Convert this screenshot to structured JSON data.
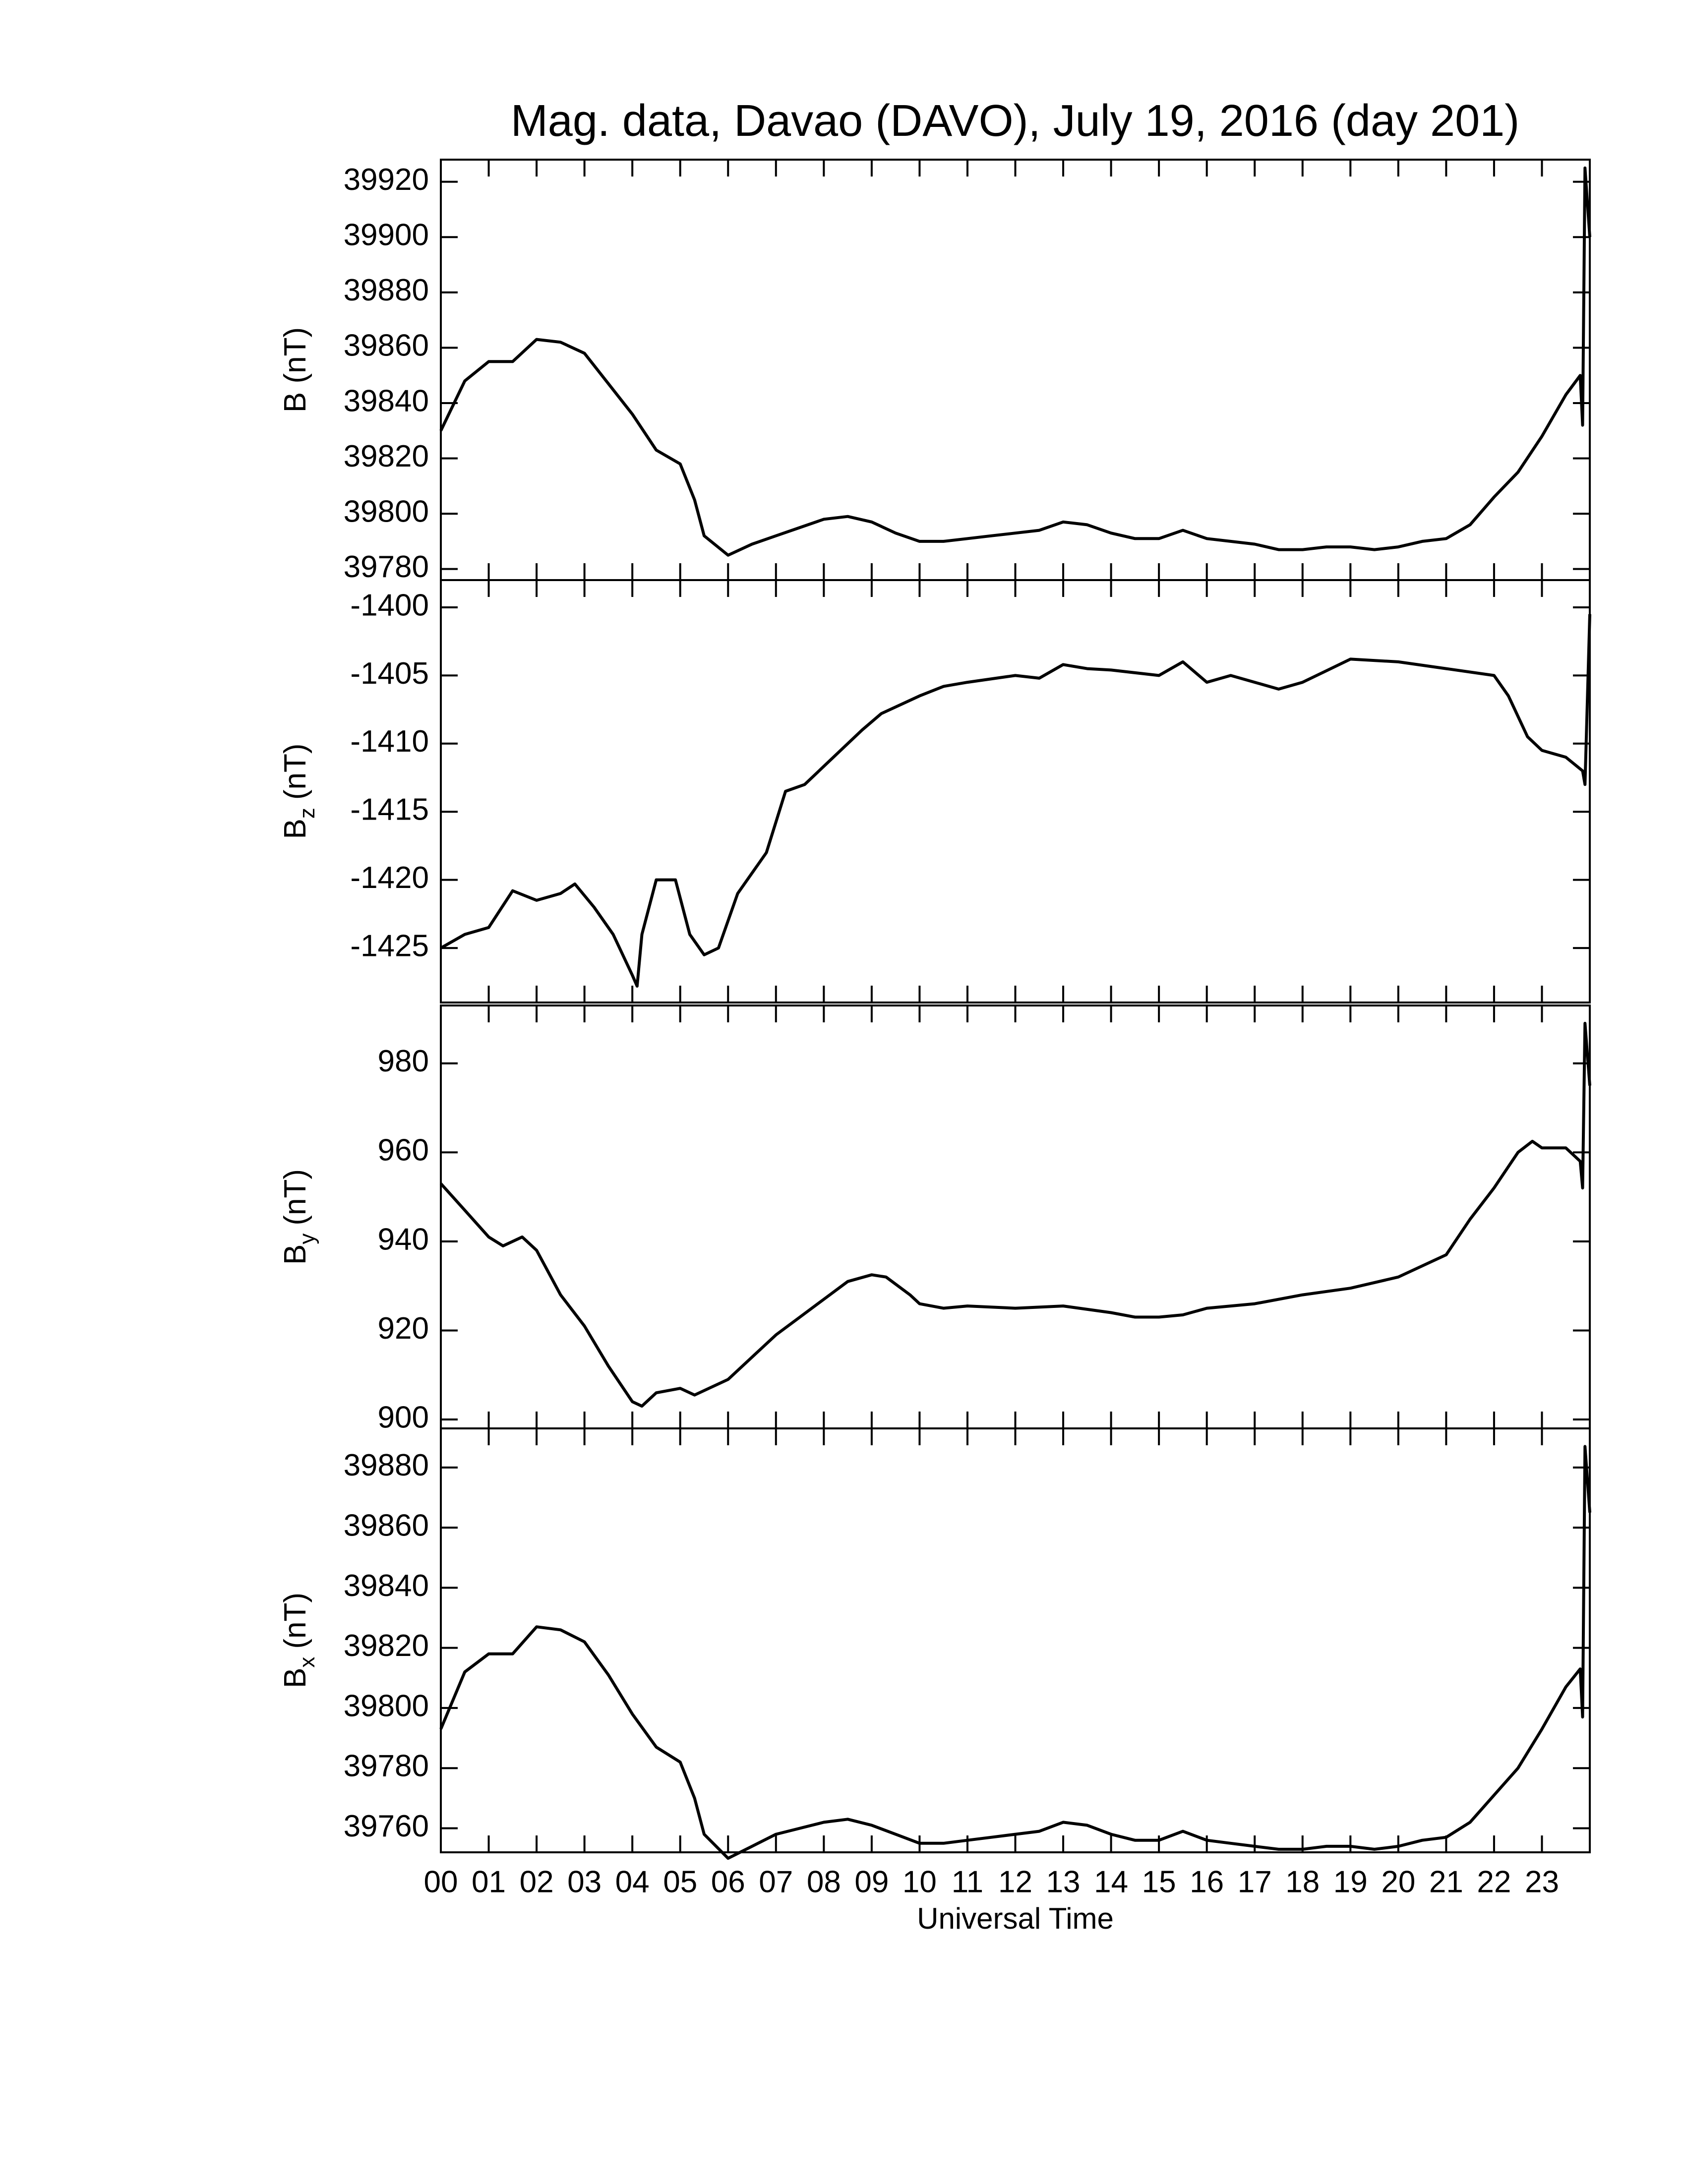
{
  "chart_data": [
    {
      "type": "line",
      "title": "Mag. data, Davao (DAVO), July 19, 2016 (day 201)",
      "ylabel": "B (nT)",
      "color": "#000000",
      "xlim": [
        0,
        24
      ],
      "ylim": [
        39776,
        39928
      ],
      "yticks": [
        39780,
        39800,
        39820,
        39840,
        39860,
        39880,
        39900,
        39920
      ],
      "x": [
        0,
        0.5,
        1,
        1.5,
        2,
        2.5,
        3,
        3.5,
        4,
        4.5,
        5,
        5.3,
        5.5,
        6,
        6.5,
        7,
        7.5,
        8,
        8.5,
        9,
        9.5,
        10,
        10.5,
        11,
        11.5,
        12,
        12.5,
        13,
        13.5,
        14,
        14.5,
        15,
        15.5,
        16,
        16.5,
        17,
        17.5,
        18,
        18.5,
        19,
        19.5,
        20,
        20.5,
        21,
        21.5,
        22,
        22.5,
        23,
        23.5,
        23.8,
        23.85,
        23.9,
        24
      ],
      "values": [
        39830,
        39848,
        39855,
        39855,
        39863,
        39862,
        39858,
        39847,
        39836,
        39823,
        39818,
        39805,
        39792,
        39785,
        39789,
        39792,
        39795,
        39798,
        39799,
        39797,
        39793,
        39790,
        39790,
        39791,
        39792,
        39793,
        39794,
        39797,
        39796,
        39793,
        39791,
        39791,
        39794,
        39791,
        39790,
        39789,
        39787,
        39787,
        39788,
        39788,
        39787,
        39788,
        39790,
        39791,
        39796,
        39806,
        39815,
        39828,
        39843,
        39850,
        39832,
        39925,
        39900
      ]
    },
    {
      "type": "line",
      "ylabel": "B",
      "ylabel_sub": "z",
      "ylabel_unit": "(nT)",
      "color": "#000000",
      "xlim": [
        0,
        24
      ],
      "ylim": [
        -1429,
        -1398
      ],
      "yticks": [
        -1425,
        -1420,
        -1415,
        -1410,
        -1405,
        -1400
      ],
      "x": [
        0,
        0.5,
        1,
        1.5,
        2,
        2.5,
        2.8,
        3.2,
        3.6,
        4,
        4.1,
        4.2,
        4.5,
        4.9,
        5.2,
        5.5,
        5.8,
        6.2,
        6.8,
        7.2,
        7.6,
        8.2,
        8.8,
        9.2,
        10,
        10.5,
        11,
        12,
        12.5,
        13,
        13.5,
        14,
        15,
        15.5,
        16,
        16.5,
        17,
        17.5,
        18,
        19,
        20,
        21,
        22,
        22.3,
        22.7,
        23,
        23.5,
        23.85,
        23.9,
        24
      ],
      "values": [
        -1425,
        -1424,
        -1423.5,
        -1420.8,
        -1421.5,
        -1421,
        -1420.3,
        -1422,
        -1424,
        -1427,
        -1427.8,
        -1424,
        -1420,
        -1420,
        -1424,
        -1425.5,
        -1425,
        -1421,
        -1418,
        -1413.5,
        -1413,
        -1411,
        -1409,
        -1407.8,
        -1406.5,
        -1405.8,
        -1405.5,
        -1405,
        -1405.2,
        -1404.2,
        -1404.5,
        -1404.6,
        -1405,
        -1404,
        -1405.5,
        -1405,
        -1405.5,
        -1406,
        -1405.5,
        -1403.8,
        -1404,
        -1404.5,
        -1405,
        -1406.5,
        -1409.5,
        -1410.5,
        -1411,
        -1412,
        -1413,
        -1400.5
      ]
    },
    {
      "type": "line",
      "ylabel": "B",
      "ylabel_sub": "y",
      "ylabel_unit": "(nT)",
      "color": "#000000",
      "xlim": [
        0,
        24
      ],
      "ylim": [
        898,
        993
      ],
      "yticks": [
        900,
        920,
        940,
        960,
        980
      ],
      "x": [
        0,
        0.5,
        1,
        1.3,
        1.7,
        2,
        2.5,
        3,
        3.5,
        4,
        4.2,
        4.5,
        5,
        5.3,
        5.6,
        6,
        6.5,
        7,
        7.5,
        8,
        8.5,
        9,
        9.3,
        9.8,
        10,
        10.5,
        11,
        12,
        13,
        14,
        14.5,
        15,
        15.5,
        16,
        17,
        18,
        19,
        20,
        21,
        21.5,
        22,
        22.5,
        22.8,
        23,
        23.5,
        23.8,
        23.85,
        23.9,
        24
      ],
      "values": [
        953,
        947,
        941,
        939,
        941,
        938,
        928,
        921,
        912,
        904,
        903,
        906,
        907,
        905.5,
        907,
        909,
        914,
        919,
        923,
        927,
        931,
        932.5,
        932,
        928,
        926,
        925,
        925.5,
        925,
        925.5,
        924,
        923,
        923,
        923.5,
        925,
        926,
        928,
        929.5,
        932,
        937,
        945,
        952,
        960,
        962.5,
        961,
        961,
        958,
        952,
        989,
        975
      ]
    },
    {
      "type": "line",
      "ylabel": "B",
      "ylabel_sub": "x",
      "ylabel_unit": "(nT)",
      "xlabel": "Universal Time",
      "color": "#000000",
      "xlim": [
        0,
        24
      ],
      "ylim": [
        39752,
        39893
      ],
      "yticks": [
        39760,
        39780,
        39800,
        39820,
        39840,
        39860,
        39880
      ],
      "xticks": [
        {
          "value": 0,
          "label": "00"
        },
        {
          "value": 1,
          "label": "01"
        },
        {
          "value": 2,
          "label": "02"
        },
        {
          "value": 3,
          "label": "03"
        },
        {
          "value": 4,
          "label": "04"
        },
        {
          "value": 5,
          "label": "05"
        },
        {
          "value": 6,
          "label": "06"
        },
        {
          "value": 7,
          "label": "07"
        },
        {
          "value": 8,
          "label": "08"
        },
        {
          "value": 9,
          "label": "09"
        },
        10,
        11,
        12,
        13,
        14,
        15,
        16,
        17,
        18,
        19,
        20,
        21,
        22,
        23
      ],
      "x": [
        0,
        0.5,
        1,
        1.5,
        2,
        2.5,
        3,
        3.5,
        4,
        4.5,
        5,
        5.3,
        5.5,
        6,
        6.5,
        7,
        7.5,
        8,
        8.5,
        9,
        9.5,
        10,
        10.5,
        11,
        11.5,
        12,
        12.5,
        13,
        13.5,
        14,
        14.5,
        15,
        15.5,
        16,
        16.5,
        17,
        17.5,
        18,
        18.5,
        19,
        19.5,
        20,
        20.5,
        21,
        21.5,
        22,
        22.5,
        23,
        23.5,
        23.8,
        23.85,
        23.9,
        24
      ],
      "values": [
        39793,
        39812,
        39818,
        39818,
        39827,
        39826,
        39822,
        39811,
        39798,
        39787,
        39782,
        39770,
        39758,
        39750,
        39754,
        39758,
        39760,
        39762,
        39763,
        39761,
        39758,
        39755,
        39755,
        39756,
        39757,
        39758,
        39759,
        39762,
        39761,
        39758,
        39756,
        39756,
        39759,
        39756,
        39755,
        39754,
        39753,
        39753,
        39754,
        39754,
        39753,
        39754,
        39756,
        39757,
        39762,
        39771,
        39780,
        39793,
        39807,
        39813,
        39797,
        39887,
        39865
      ]
    }
  ]
}
